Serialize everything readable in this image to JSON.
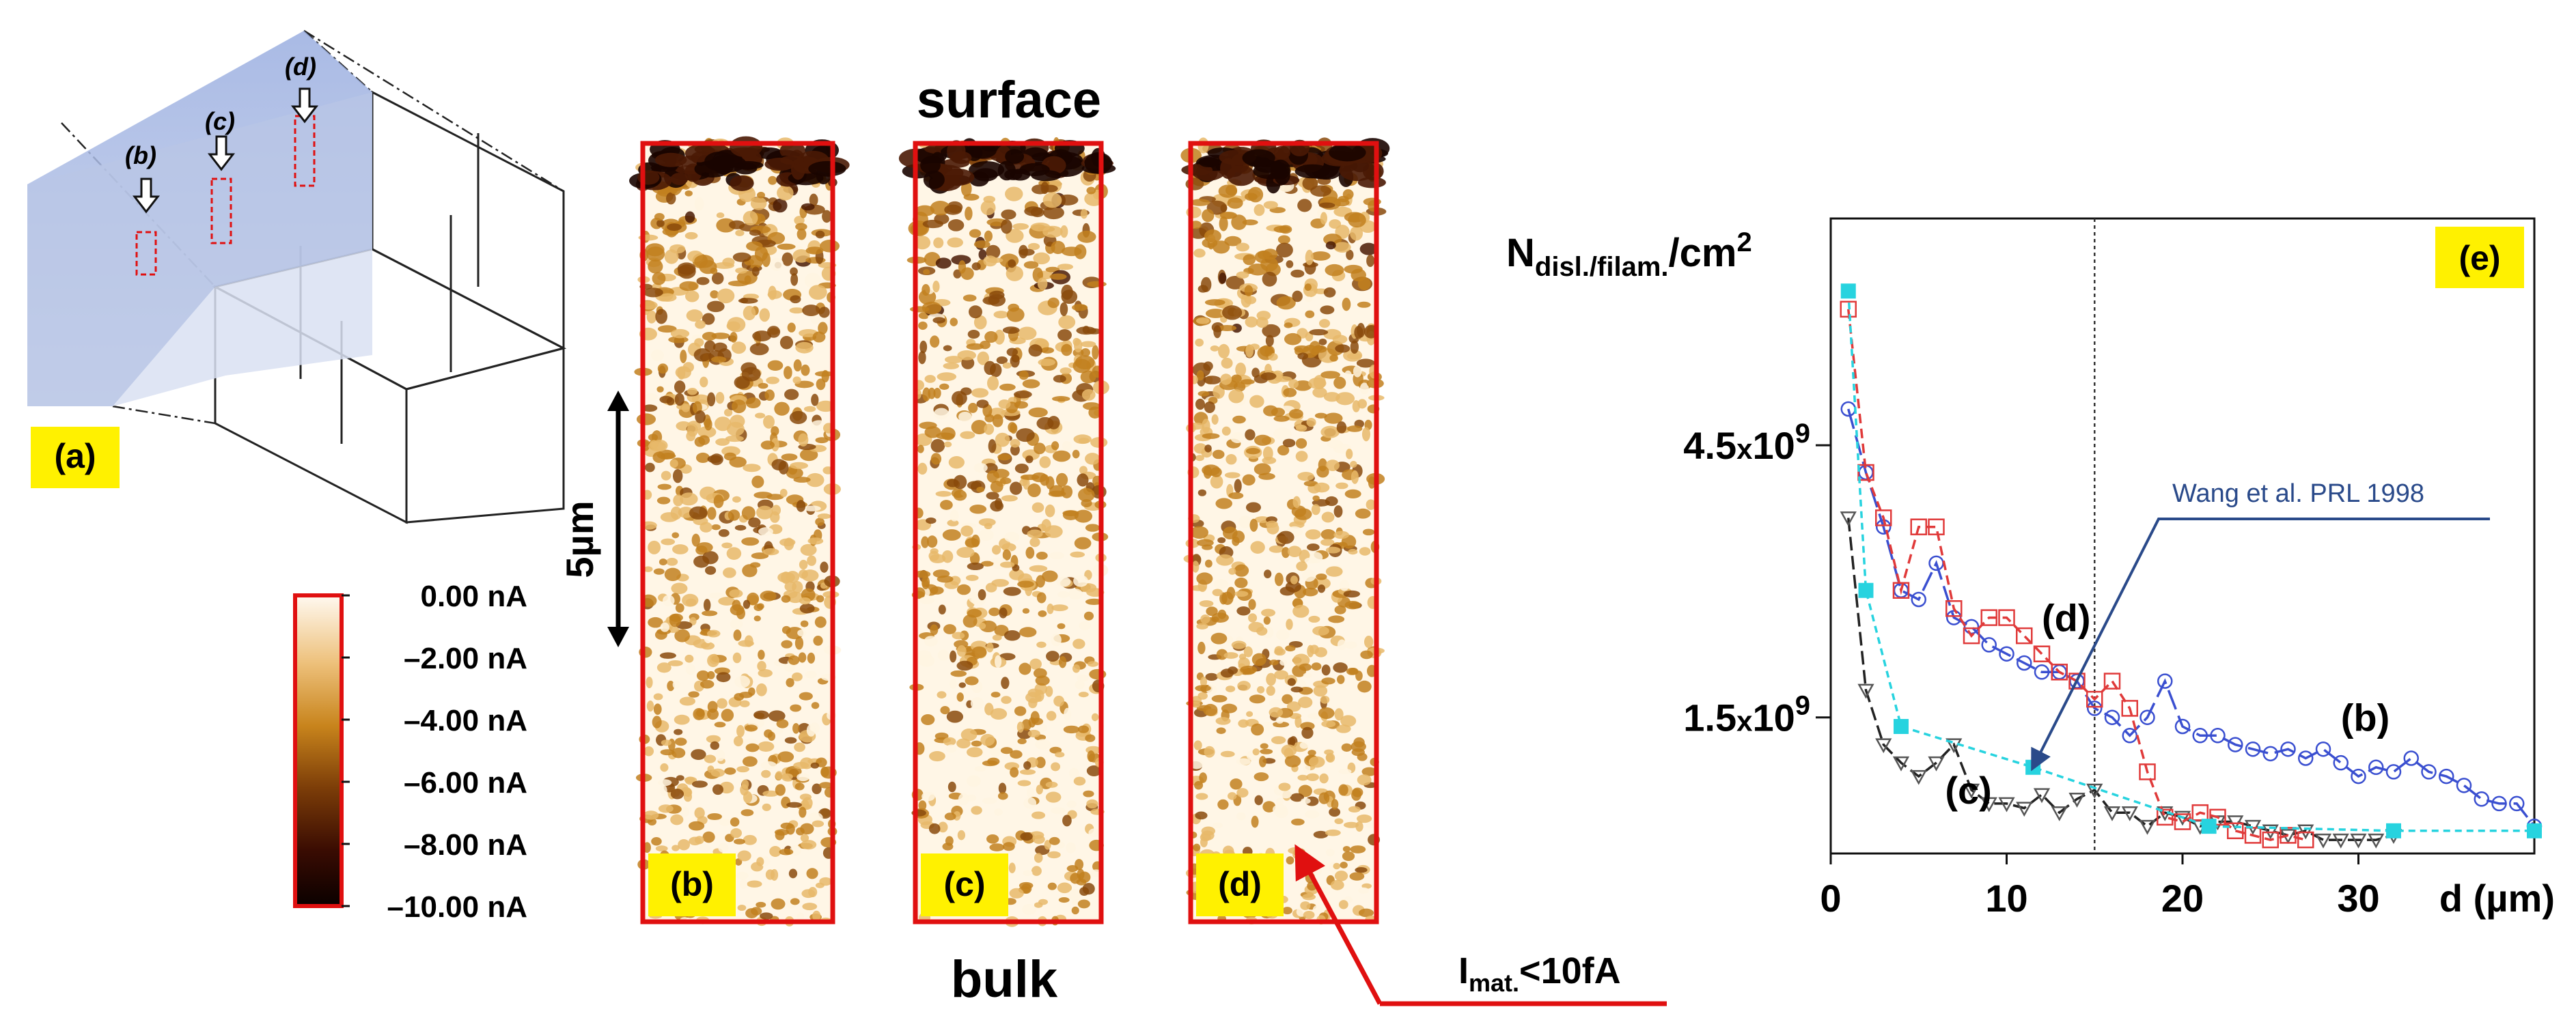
{
  "panel_a": {
    "label": "(a)",
    "markers": [
      "(b)",
      "(c)",
      "(d)"
    ]
  },
  "maps": {
    "top_label": "surface",
    "bottom_label": "bulk",
    "scale_label": "5µm",
    "panels": [
      {
        "label": "(b)",
        "seed": 11
      },
      {
        "label": "(c)",
        "seed": 23
      },
      {
        "label": "(d)",
        "seed": 37
      }
    ],
    "annotation": {
      "main": "I",
      "sub": "mat.",
      "suffix": "<10fA"
    }
  },
  "colorbar": {
    "ticks": [
      "0.00 nA",
      "–2.00 nA",
      "–4.00 nA",
      "–6.00 nA",
      "–8.00 nA",
      "–10.00 nA"
    ],
    "colors": [
      "#fff9f0",
      "#e9b76a",
      "#c47f1a",
      "#7a3a06",
      "#3a0c02",
      "#0a0000"
    ]
  },
  "chart_data": {
    "type": "line",
    "panel_label": "(e)",
    "ylabel_main": "N",
    "ylabel_sub": "disl./filam.",
    "ylabel_unit": "/cm",
    "ylabel_power": "2",
    "xlabel": "d (µm)",
    "xlim": [
      0,
      40
    ],
    "ylim": [
      0,
      7000000000.0
    ],
    "xticks": [
      0,
      10,
      20,
      30
    ],
    "yticks": [
      {
        "value": 4500000000.0,
        "mant": "4.5",
        "x": "x",
        "base": "10",
        "exp": "9"
      },
      {
        "value": 1500000000.0,
        "mant": "1.5",
        "x": "x",
        "base": "10",
        "exp": "9"
      }
    ],
    "vline_x": 15,
    "annotation": {
      "text": "Wang et al. PRL 1998",
      "target_x": 11.5,
      "target_y": 950000000.0
    },
    "series": [
      {
        "name": "(b)",
        "color": "#3a4fd0",
        "marker": "circle",
        "dash": "30 10",
        "label_pos": [
          29,
          1350000000.0
        ],
        "x": [
          1,
          2,
          3,
          4,
          5,
          6,
          7,
          8,
          9,
          10,
          11,
          12,
          13,
          14,
          15,
          16,
          17,
          18,
          19,
          20,
          21,
          22,
          23,
          24,
          25,
          26,
          27,
          28,
          29,
          30,
          31,
          32,
          33,
          34,
          35,
          36,
          37,
          38,
          39,
          40
        ],
        "y": [
          4900000000.0,
          4200000000.0,
          3600000000.0,
          2900000000.0,
          2800000000.0,
          3200000000.0,
          2600000000.0,
          2500000000.0,
          2300000000.0,
          2200000000.0,
          2100000000.0,
          2000000000.0,
          2000000000.0,
          1900000000.0,
          1600000000.0,
          1500000000.0,
          1300000000.0,
          1500000000.0,
          1900000000.0,
          1400000000.0,
          1300000000.0,
          1300000000.0,
          1200000000.0,
          1150000000.0,
          1100000000.0,
          1150000000.0,
          1050000000.0,
          1150000000.0,
          1000000000.0,
          850000000.0,
          950000000.0,
          900000000.0,
          1050000000.0,
          900000000.0,
          850000000.0,
          750000000.0,
          600000000.0,
          550000000.0,
          550000000.0,
          300000000.0
        ]
      },
      {
        "name": "(c)",
        "color": "#222222",
        "marker": "triangle",
        "dash": "20 8",
        "label_pos": [
          6.5,
          550000000.0
        ],
        "x": [
          1,
          2,
          3,
          4,
          5,
          6,
          7,
          8,
          9,
          10,
          11,
          12,
          13,
          14,
          15,
          16,
          17,
          18,
          19,
          20,
          21,
          22,
          23,
          24,
          25,
          26,
          27,
          28,
          29,
          30,
          31,
          32
        ],
        "y": [
          3700000000.0,
          1800000000.0,
          1200000000.0,
          1000000000.0,
          850000000.0,
          1000000000.0,
          1200000000.0,
          700000000.0,
          550000000.0,
          550000000.0,
          500000000.0,
          650000000.0,
          450000000.0,
          600000000.0,
          700000000.0,
          450000000.0,
          450000000.0,
          300000000.0,
          450000000.0,
          400000000.0,
          300000000.0,
          350000000.0,
          350000000.0,
          300000000.0,
          250000000.0,
          200000000.0,
          250000000.0,
          150000000.0,
          150000000.0,
          150000000.0,
          150000000.0,
          200000000.0
        ]
      },
      {
        "name": "(d)",
        "color": "#e03a3a",
        "marker": "square",
        "dash": "14 8",
        "label_pos": [
          12,
          2450000000.0
        ],
        "x": [
          1,
          2,
          3,
          4,
          5,
          6,
          7,
          8,
          9,
          10,
          11,
          12,
          13,
          14,
          15,
          16,
          17,
          18,
          19,
          20,
          21,
          22,
          23,
          24,
          25,
          26,
          27
        ],
        "y": [
          6000000000.0,
          4200000000.0,
          3700000000.0,
          2900000000.0,
          3600000000.0,
          3600000000.0,
          2700000000.0,
          2400000000.0,
          2600000000.0,
          2600000000.0,
          2400000000.0,
          2200000000.0,
          2000000000.0,
          1900000000.0,
          1700000000.0,
          1900000000.0,
          1600000000.0,
          900000000.0,
          400000000.0,
          350000000.0,
          450000000.0,
          400000000.0,
          250000000.0,
          200000000.0,
          150000000.0,
          200000000.0,
          150000000.0
        ]
      },
      {
        "name": "Wang et al. PRL 1998",
        "color": "#27d3df",
        "marker": "filled-square",
        "dash": "10 7",
        "x": [
          1,
          2,
          4,
          11.5,
          21.5,
          32,
          40
        ],
        "y": [
          6200000000.0,
          2900000000.0,
          1400000000.0,
          950000000.0,
          300000000.0,
          250000000.0,
          250000000.0
        ]
      }
    ]
  }
}
